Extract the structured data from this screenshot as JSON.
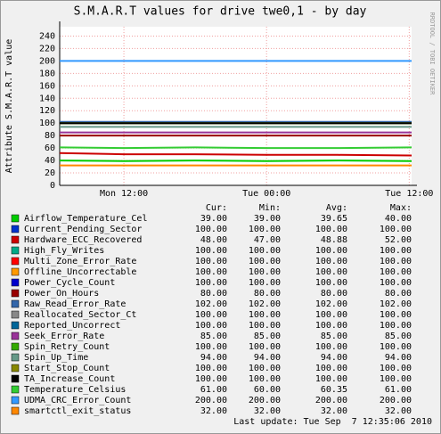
{
  "chart_data": {
    "type": "line",
    "title": "S.M.A.R.T values for drive twe0,1 - by day",
    "ylabel": "Attribute S.M.A.R.T value",
    "watermark": "RRDTOOL / TOBI OETIKER",
    "x": [
      6.6,
      12,
      18,
      24,
      30,
      36.2
    ],
    "xlim": [
      6.6,
      36.2
    ],
    "xticks": [
      {
        "value": 12,
        "label": "Mon 12:00"
      },
      {
        "value": 24,
        "label": "Tue 00:00"
      },
      {
        "value": 36,
        "label": "Tue 12:00"
      }
    ],
    "ylim": [
      0,
      255
    ],
    "yticks": [
      0,
      20,
      40,
      60,
      80,
      100,
      120,
      140,
      160,
      180,
      200,
      220,
      240
    ],
    "grid": true,
    "legend_headers": [
      "Cur:",
      "Min:",
      "Avg:",
      "Max:"
    ],
    "series": [
      {
        "name": "Airflow_Temperature_Cel",
        "color": "#00cc00",
        "values": [
          40,
          39,
          40,
          39,
          40,
          39
        ],
        "stats": [
          "39.00",
          "39.00",
          "39.65",
          "40.00"
        ]
      },
      {
        "name": "Current_Pending_Sector",
        "color": "#0033cc",
        "values": [
          100,
          100,
          100,
          100,
          100,
          100
        ],
        "stats": [
          "100.00",
          "100.00",
          "100.00",
          "100.00"
        ]
      },
      {
        "name": "Hardware_ECC_Recovered",
        "color": "#cc0000",
        "values": [
          52,
          50,
          50,
          49,
          49,
          48
        ],
        "stats": [
          "48.00",
          "47.00",
          "48.88",
          "52.00"
        ]
      },
      {
        "name": "High_Fly_Writes",
        "color": "#00aa88",
        "values": [
          100,
          100,
          100,
          100,
          100,
          100
        ],
        "stats": [
          "100.00",
          "100.00",
          "100.00",
          "100.00"
        ]
      },
      {
        "name": "Multi_Zone_Error_Rate",
        "color": "#ff0000",
        "values": [
          100,
          100,
          100,
          100,
          100,
          100
        ],
        "stats": [
          "100.00",
          "100.00",
          "100.00",
          "100.00"
        ]
      },
      {
        "name": "Offline_Uncorrectable",
        "color": "#ff9900",
        "values": [
          100,
          100,
          100,
          100,
          100,
          100
        ],
        "stats": [
          "100.00",
          "100.00",
          "100.00",
          "100.00"
        ]
      },
      {
        "name": "Power_Cycle_Count",
        "color": "#0000cc",
        "values": [
          100,
          100,
          100,
          100,
          100,
          100
        ],
        "stats": [
          "100.00",
          "100.00",
          "100.00",
          "100.00"
        ]
      },
      {
        "name": "Power_On_Hours",
        "color": "#990000",
        "values": [
          80,
          80,
          80,
          80,
          80,
          80
        ],
        "stats": [
          "80.00",
          "80.00",
          "80.00",
          "80.00"
        ]
      },
      {
        "name": "Raw_Read_Error_Rate",
        "color": "#3366aa",
        "values": [
          102,
          102,
          102,
          102,
          102,
          102
        ],
        "stats": [
          "102.00",
          "102.00",
          "102.00",
          "102.00"
        ]
      },
      {
        "name": "Reallocated_Sector_Ct",
        "color": "#888888",
        "values": [
          100,
          100,
          100,
          100,
          100,
          100
        ],
        "stats": [
          "100.00",
          "100.00",
          "100.00",
          "100.00"
        ]
      },
      {
        "name": "Reported_Uncorrect",
        "color": "#006699",
        "values": [
          100,
          100,
          100,
          100,
          100,
          100
        ],
        "stats": [
          "100.00",
          "100.00",
          "100.00",
          "100.00"
        ]
      },
      {
        "name": "Seek_Error_Rate",
        "color": "#993399",
        "values": [
          85,
          85,
          85,
          85,
          85,
          85
        ],
        "stats": [
          "85.00",
          "85.00",
          "85.00",
          "85.00"
        ]
      },
      {
        "name": "Spin_Retry_Count",
        "color": "#33aa00",
        "values": [
          100,
          100,
          100,
          100,
          100,
          100
        ],
        "stats": [
          "100.00",
          "100.00",
          "100.00",
          "100.00"
        ]
      },
      {
        "name": "Spin_Up_Time",
        "color": "#669988",
        "values": [
          94,
          94,
          94,
          94,
          94,
          94
        ],
        "stats": [
          "94.00",
          "94.00",
          "94.00",
          "94.00"
        ]
      },
      {
        "name": "Start_Stop_Count",
        "color": "#888800",
        "values": [
          100,
          100,
          100,
          100,
          100,
          100
        ],
        "stats": [
          "100.00",
          "100.00",
          "100.00",
          "100.00"
        ]
      },
      {
        "name": "TA_Increase_Count",
        "color": "#000000",
        "values": [
          100,
          100,
          100,
          100,
          100,
          100
        ],
        "stats": [
          "100.00",
          "100.00",
          "100.00",
          "100.00"
        ]
      },
      {
        "name": "Temperature_Celsius",
        "color": "#33cc33",
        "values": [
          61,
          60,
          61,
          60,
          60,
          61
        ],
        "stats": [
          "61.00",
          "60.00",
          "60.35",
          "61.00"
        ]
      },
      {
        "name": "UDMA_CRC_Error_Count",
        "color": "#3399ff",
        "values": [
          200,
          200,
          200,
          200,
          200,
          200
        ],
        "stats": [
          "200.00",
          "200.00",
          "200.00",
          "200.00"
        ]
      },
      {
        "name": "smartctl_exit_status",
        "color": "#ff8800",
        "values": [
          32,
          32,
          32,
          32,
          32,
          32
        ],
        "stats": [
          "32.00",
          "32.00",
          "32.00",
          "32.00"
        ]
      }
    ],
    "footer": "Last update: Tue Sep  7 12:35:06 2010"
  }
}
